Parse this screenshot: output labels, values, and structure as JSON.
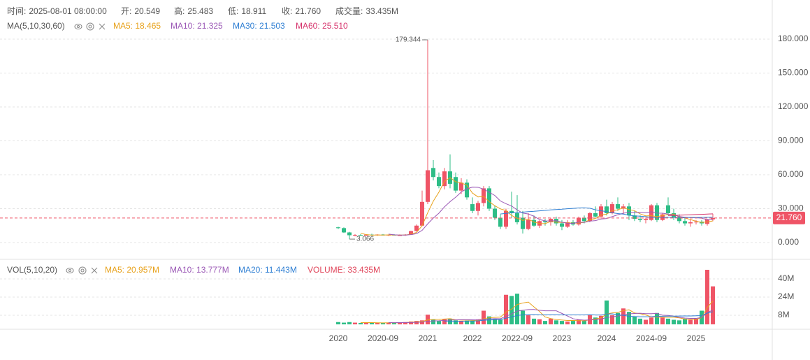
{
  "chart_data": {
    "type": "candlestick",
    "header": [
      {
        "label": "时间:",
        "value": "2025-08-01 08:00:00"
      },
      {
        "label": "开:",
        "value": "20.549"
      },
      {
        "label": "高:",
        "value": "25.483"
      },
      {
        "label": "低:",
        "value": "18.911"
      },
      {
        "label": "收:",
        "value": "21.760"
      },
      {
        "label": "成交量:",
        "value": "33.435M"
      }
    ],
    "ma_title": "MA(5,10,30,60)",
    "ma_legend": [
      {
        "text": "MA5: 18.465",
        "color": "#e8a21c",
        "period": 5
      },
      {
        "text": "MA10: 21.325",
        "color": "#9b59b6",
        "period": 10
      },
      {
        "text": "MA30: 21.503",
        "color": "#2f7fd3",
        "period": 30
      },
      {
        "text": "MA60: 25.510",
        "color": "#d6336c",
        "period": 60
      }
    ],
    "vol_title": "VOL(5,10,20)",
    "vol_legend": [
      {
        "text": "MA5: 20.957M",
        "color": "#e8a21c",
        "period": 5
      },
      {
        "text": "MA10: 13.777M",
        "color": "#9b59b6",
        "period": 10
      },
      {
        "text": "MA20: 11.443M",
        "color": "#2f7fd3",
        "period": 20
      },
      {
        "text": "VOLUME: 33.435M",
        "color": "#e0455a"
      }
    ],
    "up_color": "#ef5466",
    "down_color": "#2dbd86",
    "categories": [
      "2020",
      null,
      null,
      null,
      null,
      null,
      null,
      null,
      "2020-09",
      null,
      null,
      null,
      null,
      null,
      null,
      null,
      "2021",
      null,
      null,
      null,
      null,
      null,
      null,
      null,
      "2022",
      null,
      null,
      null,
      null,
      null,
      null,
      null,
      "2022-09",
      null,
      null,
      null,
      null,
      null,
      null,
      null,
      "2023",
      null,
      null,
      null,
      null,
      null,
      null,
      null,
      "2024",
      null,
      null,
      null,
      null,
      null,
      null,
      null,
      "2024-09",
      null,
      null,
      null,
      null,
      null,
      null,
      null,
      "2025",
      null,
      null,
      null
    ],
    "open": [
      13.5,
      12.8,
      9,
      6.5,
      6.8,
      6.2,
      7,
      6.6,
      7.1,
      6.4,
      6.9,
      6.5,
      6.5,
      7,
      10.2,
      15,
      36,
      66,
      58,
      50,
      63,
      58,
      46,
      53,
      34,
      28,
      35,
      48,
      30,
      22,
      14,
      28,
      26,
      22,
      12,
      20,
      15,
      19,
      18,
      21,
      17,
      14,
      18,
      16,
      22,
      19,
      26,
      23,
      32,
      26,
      34,
      30,
      32,
      24,
      21,
      20,
      20,
      33,
      20,
      33,
      26,
      22,
      19,
      17,
      18,
      18.5,
      16.5,
      20.549
    ],
    "high": [
      14,
      13.5,
      9.5,
      7.5,
      7.5,
      7.2,
      7.8,
      7.4,
      7.6,
      7,
      7.5,
      7.2,
      7.5,
      10.5,
      16,
      46,
      179.344,
      73,
      62,
      66,
      78,
      62,
      57,
      56,
      40,
      37,
      50,
      50,
      33,
      25,
      30,
      45,
      42,
      28,
      26,
      24,
      20,
      21,
      22,
      23,
      20,
      20,
      20,
      23,
      24,
      27,
      32,
      34,
      38,
      36,
      40,
      34,
      35,
      28,
      24,
      22,
      34,
      35,
      26,
      40,
      30,
      25,
      22,
      21,
      20,
      20,
      21,
      25.483
    ],
    "low": [
      12,
      8.5,
      3.066,
      5.5,
      6,
      5.8,
      6.3,
      6,
      6.2,
      5.8,
      6.3,
      6.1,
      6,
      6.8,
      9.8,
      14.5,
      34,
      55,
      48,
      47,
      48,
      44,
      43,
      38,
      26,
      24,
      32,
      28,
      20,
      12,
      12,
      22,
      16,
      8,
      11,
      14,
      13,
      15,
      15,
      15,
      11,
      13,
      15,
      15,
      17,
      18,
      22,
      21,
      24,
      25,
      28,
      25,
      20,
      19,
      18,
      17,
      19,
      18,
      19,
      24,
      20,
      17,
      15,
      14,
      16,
      15,
      15,
      18.911
    ],
    "close": [
      12.8,
      9,
      6.5,
      6.8,
      6.2,
      7,
      6.6,
      7.1,
      6.4,
      6.9,
      6.5,
      6.5,
      7,
      10.2,
      15,
      36,
      64,
      58,
      50,
      63,
      52,
      46,
      53,
      40,
      28,
      35,
      48,
      30,
      22,
      14,
      28,
      26,
      18,
      12,
      20,
      15,
      19,
      18,
      21,
      17,
      14,
      18,
      16,
      22,
      19,
      26,
      23,
      32,
      26,
      34,
      30,
      32,
      24,
      21,
      20,
      21,
      33,
      20,
      25,
      26,
      22,
      19,
      17,
      18,
      18.5,
      17,
      20.549,
      21.76
    ],
    "volume": [
      2,
      1.5,
      2,
      1.5,
      1.2,
      1.5,
      1.3,
      1.4,
      1.2,
      1.5,
      1.6,
      1.8,
      2,
      2.5,
      3,
      3.5,
      8.5,
      4,
      3,
      4.5,
      5,
      3.5,
      2.8,
      3.2,
      2.8,
      4,
      12,
      7,
      5,
      4,
      26,
      25,
      27,
      12,
      8,
      5,
      4.5,
      3,
      5,
      3.5,
      3,
      2.5,
      3,
      4,
      3,
      8,
      6,
      7.5,
      21,
      8,
      10,
      14,
      11,
      7,
      5,
      4,
      6,
      10,
      6,
      5,
      4,
      3.5,
      5,
      4,
      5,
      12,
      48,
      33.435
    ],
    "ylim": [
      -14.2,
      211.5
    ],
    "yticks": [
      {
        "value": 0,
        "label": "0.000"
      },
      {
        "value": 30,
        "label": "30.000"
      },
      {
        "value": 60,
        "label": "60.000"
      },
      {
        "value": 90,
        "label": "90.000"
      },
      {
        "value": 120,
        "label": "120.000"
      },
      {
        "value": 150,
        "label": "150.000"
      },
      {
        "value": 180,
        "label": "180.000"
      }
    ],
    "vol_ylim": [
      -3.7,
      56.6
    ],
    "vol_yticks": [
      {
        "value": 8,
        "label": "8M"
      },
      {
        "value": 24,
        "label": "24M"
      },
      {
        "value": 40,
        "label": "40M"
      }
    ],
    "last_price": {
      "value": 21.76,
      "label": "21.760"
    },
    "grid": true
  }
}
